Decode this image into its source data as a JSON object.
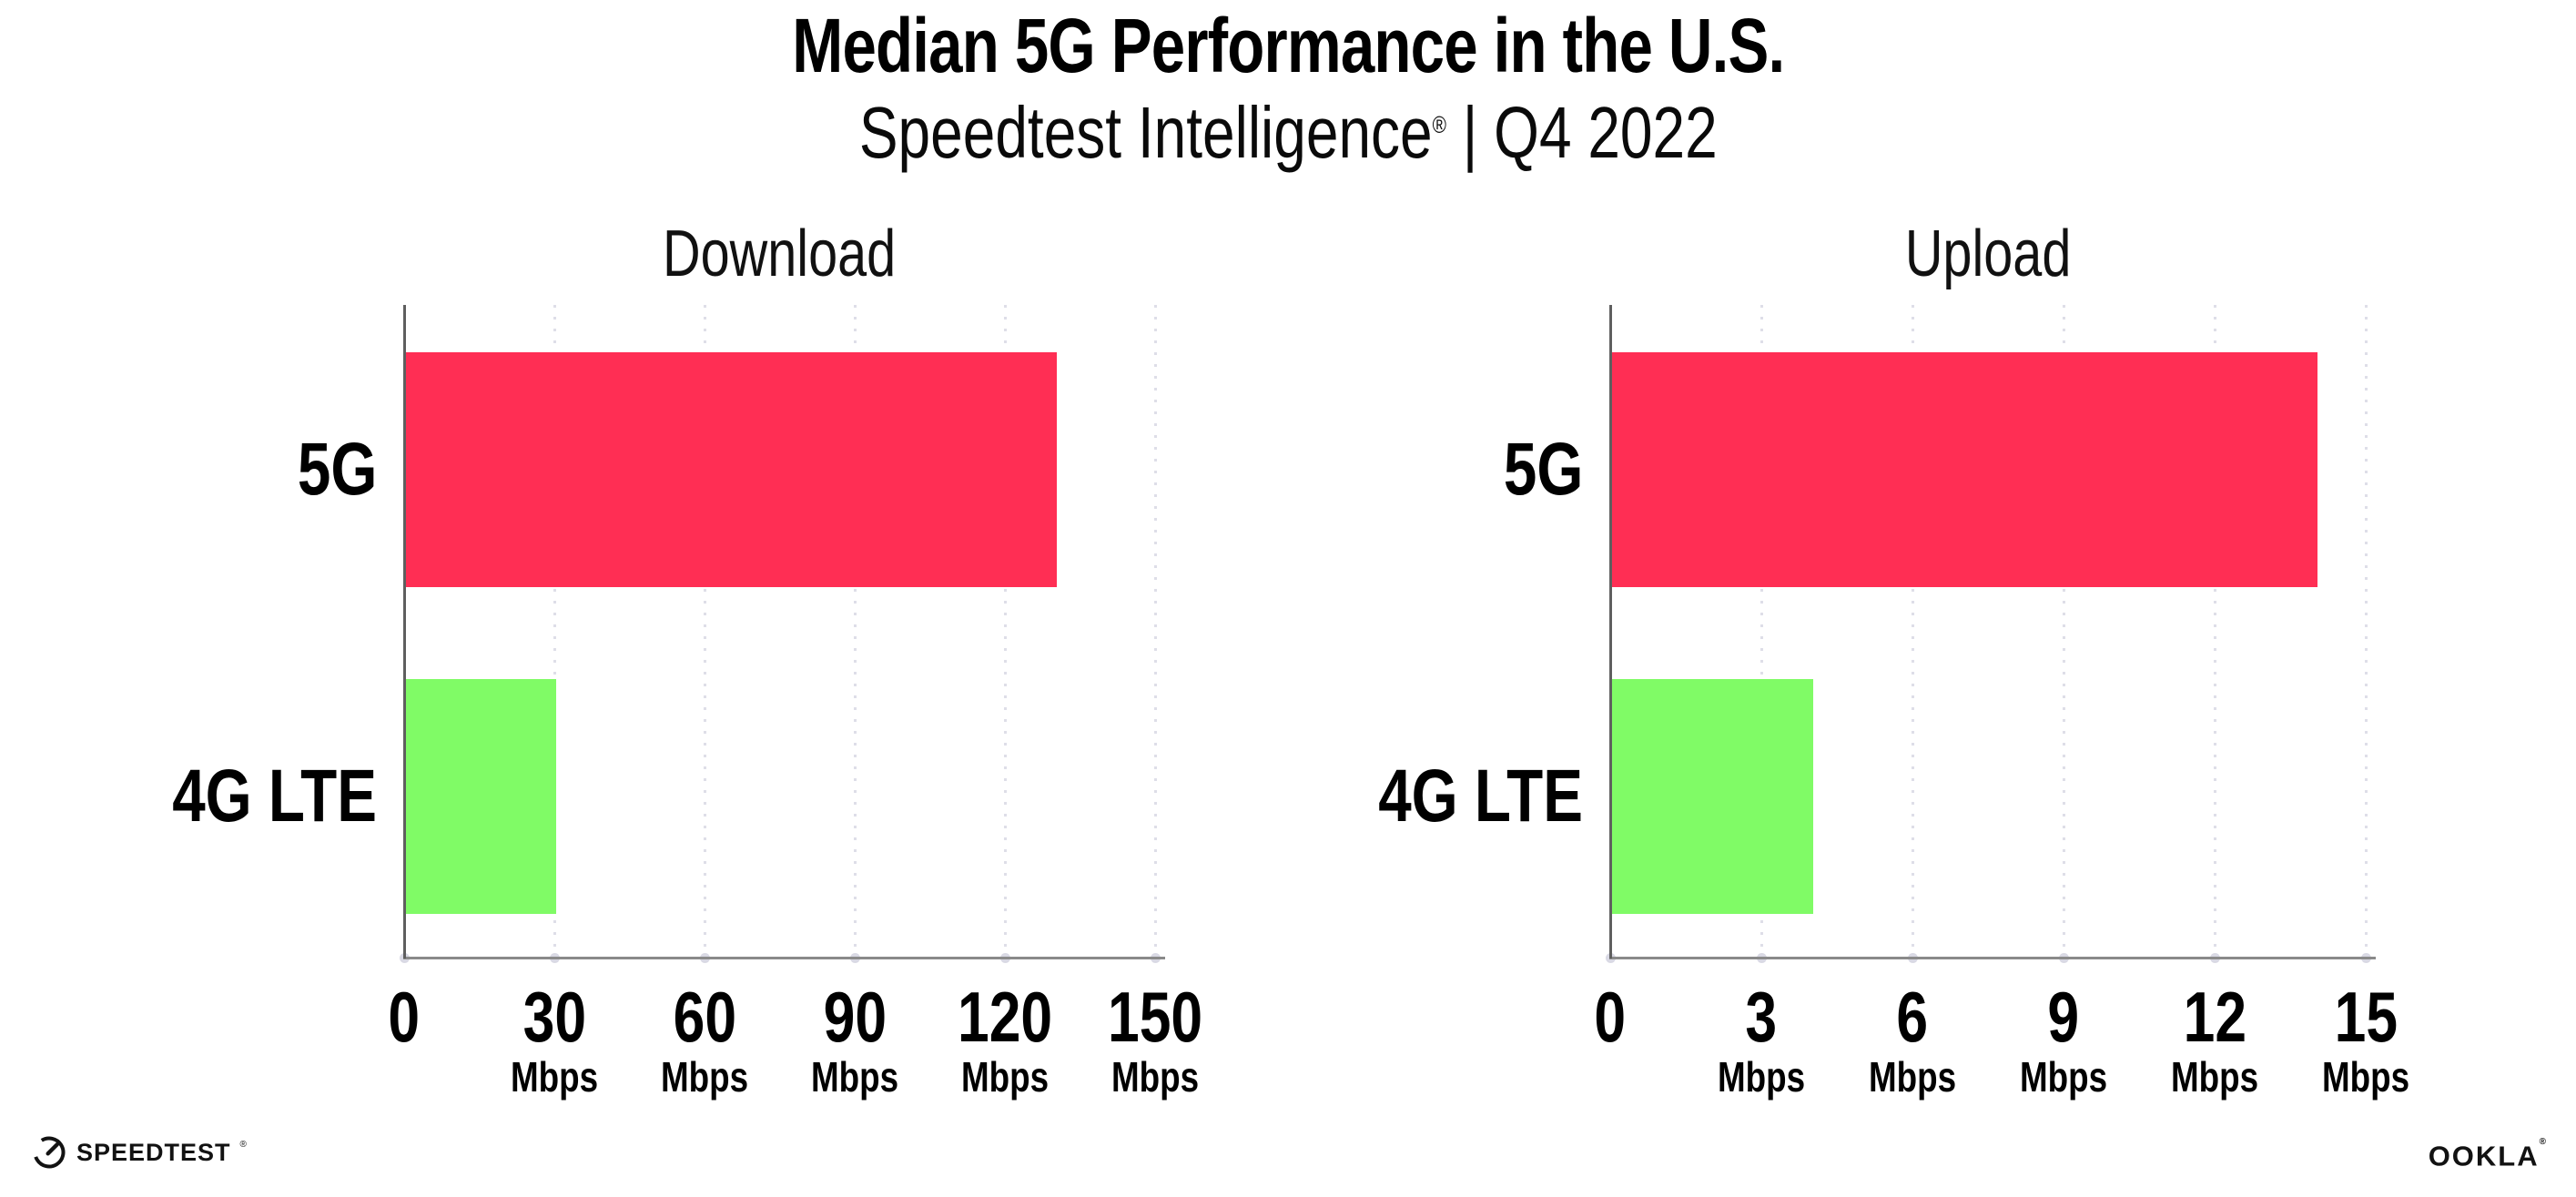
{
  "header": {
    "title": "Median 5G Performance in the U.S.",
    "subtitle_brand": "Speedtest Intelligence",
    "subtitle_reg": "®",
    "subtitle_divider": " | ",
    "subtitle_period": "Q4 2022"
  },
  "chart_data": [
    {
      "type": "bar",
      "orientation": "horizontal",
      "title": "Download",
      "categories": [
        "5G",
        "4G LTE"
      ],
      "values": [
        130,
        30
      ],
      "unit": "Mbps",
      "xlim": [
        0,
        150
      ],
      "xticks": [
        0,
        30,
        60,
        90,
        120,
        150
      ],
      "tick_unit_label": "Mbps",
      "bar_colors": [
        "#ff2e54",
        "#80fb66"
      ],
      "grid": "dotted vertical gridlines at each tick",
      "legend": "none"
    },
    {
      "type": "bar",
      "orientation": "horizontal",
      "title": "Upload",
      "categories": [
        "5G",
        "4G LTE"
      ],
      "values": [
        14,
        4
      ],
      "unit": "Mbps",
      "xlim": [
        0,
        15
      ],
      "xticks": [
        0,
        3,
        6,
        9,
        12,
        15
      ],
      "tick_unit_label": "Mbps",
      "bar_colors": [
        "#ff2e54",
        "#80fb66"
      ],
      "grid": "dotted vertical gridlines at each tick",
      "legend": "none"
    }
  ],
  "footer": {
    "speedtest_label": "SPEEDTEST",
    "speedtest_reg": "®",
    "ookla_label": "OOKLA",
    "ookla_reg": "®"
  },
  "colors": {
    "bar_5g": "#ff2e54",
    "bar_4g_lte": "#80fb66",
    "y_axis_line": "#5f5f5f",
    "x_axis_line": "#8a8a8a",
    "gridline_dot": "#dedee8",
    "text": "#000000",
    "background": "#ffffff"
  }
}
